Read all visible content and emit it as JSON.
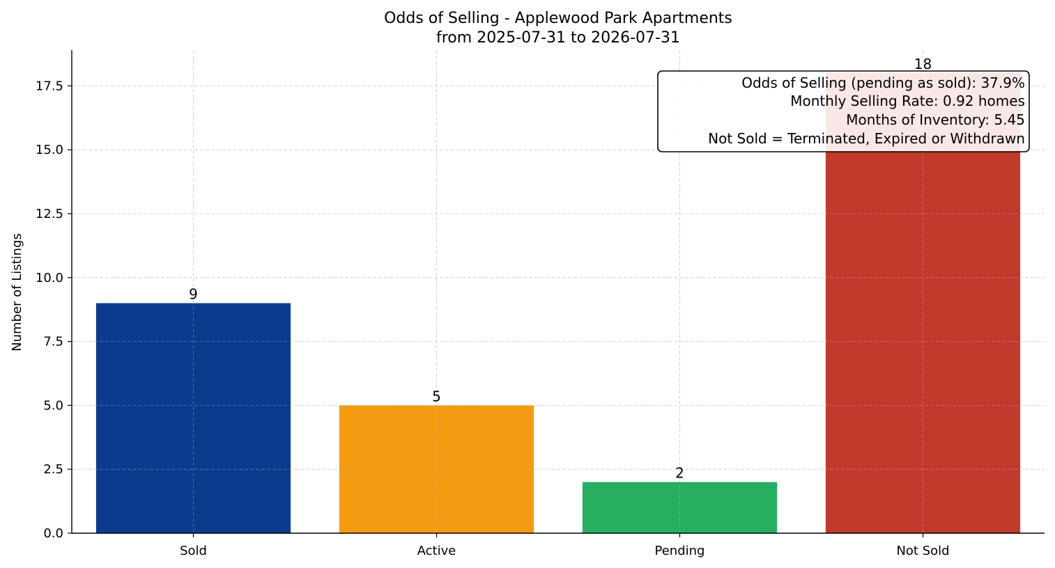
{
  "chart_data": {
    "type": "bar",
    "title": "Odds of Selling - Applewood Park Apartments",
    "subtitle": "from 2025-07-31 to 2026-07-31",
    "xlabel": "",
    "ylabel": "Number of Listings",
    "categories": [
      "Sold",
      "Active",
      "Pending",
      "Not Sold"
    ],
    "values": [
      9,
      5,
      2,
      18
    ],
    "colors": [
      "#0b3b8c",
      "#f39c12",
      "#27ae60",
      "#c0392b"
    ],
    "ylim": [
      0,
      18.9
    ],
    "yticks": [
      "0.0",
      "2.5",
      "5.0",
      "7.5",
      "10.0",
      "12.5",
      "15.0",
      "17.5"
    ],
    "grid": true,
    "annotation": {
      "placement": "top-right",
      "lines": [
        "Odds of Selling (pending as sold): 37.9%",
        "Monthly Selling Rate: 0.92 homes",
        "Months of Inventory: 5.45",
        "Not Sold = Terminated, Expired or Withdrawn"
      ]
    }
  }
}
